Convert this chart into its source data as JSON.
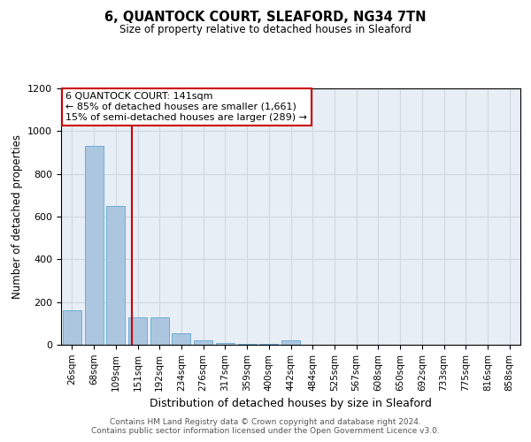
{
  "title": "6, QUANTOCK COURT, SLEAFORD, NG34 7TN",
  "subtitle": "Size of property relative to detached houses in Sleaford",
  "xlabel": "Distribution of detached houses by size in Sleaford",
  "ylabel": "Number of detached properties",
  "bar_labels": [
    "26sqm",
    "68sqm",
    "109sqm",
    "151sqm",
    "192sqm",
    "234sqm",
    "276sqm",
    "317sqm",
    "359sqm",
    "400sqm",
    "442sqm",
    "484sqm",
    "525sqm",
    "567sqm",
    "608sqm",
    "650sqm",
    "692sqm",
    "733sqm",
    "775sqm",
    "816sqm",
    "858sqm"
  ],
  "bar_heights": [
    160,
    930,
    650,
    130,
    130,
    55,
    20,
    10,
    5,
    5,
    20,
    0,
    0,
    0,
    0,
    0,
    0,
    0,
    0,
    0,
    0
  ],
  "bar_color": "#adc6e0",
  "bar_edge_color": "#6baed6",
  "ylim": [
    0,
    1200
  ],
  "yticks": [
    0,
    200,
    400,
    600,
    800,
    1000,
    1200
  ],
  "red_line_x": 2.75,
  "annotation_text": "6 QUANTOCK COURT: 141sqm\n← 85% of detached houses are smaller (1,661)\n15% of semi-detached houses are larger (289) →",
  "annotation_box_color": "#ffffff",
  "annotation_box_edge": "#cc0000",
  "footer_line1": "Contains HM Land Registry data © Crown copyright and database right 2024.",
  "footer_line2": "Contains public sector information licensed under the Open Government Licence v3.0.",
  "grid_color": "#d0d8e0",
  "bg_color": "#e8eef5"
}
